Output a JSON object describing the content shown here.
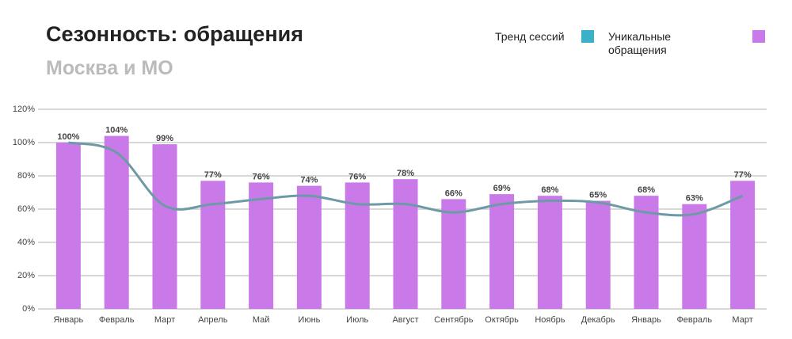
{
  "chart_data": {
    "type": "bar-line",
    "title": "Сезонность: обращения",
    "subtitle": "Москва и МО",
    "categories": [
      "Январь",
      "Февраль",
      "Март",
      "Апрель",
      "Май",
      "Июнь",
      "Июль",
      "Август",
      "Сентябрь",
      "Октябрь",
      "Ноябрь",
      "Декабрь",
      "Январь",
      "Февраль",
      "Март"
    ],
    "series": [
      {
        "name": "Тренд сессий",
        "color": "#3bb0c9",
        "line_color": "#6d9aa6",
        "kind": "line",
        "values": [
          100,
          94,
          62,
          63,
          66,
          68,
          63,
          63,
          58,
          63,
          65,
          64,
          58,
          57,
          68
        ]
      },
      {
        "name": "Уникальные обращения",
        "color": "#c97ae8",
        "kind": "bar",
        "values": [
          100,
          104,
          99,
          77,
          76,
          74,
          76,
          78,
          66,
          69,
          68,
          65,
          68,
          63,
          77
        ],
        "value_labels": [
          "100%",
          "104%",
          "99%",
          "77%",
          "76%",
          "74%",
          "76%",
          "78%",
          "66%",
          "69%",
          "68%",
          "65%",
          "68%",
          "63%",
          "77%"
        ]
      }
    ],
    "ylim": [
      0,
      120
    ],
    "yticks": [
      {
        "value": 0,
        "label": "0%"
      },
      {
        "value": 20,
        "label": "20%"
      },
      {
        "value": 40,
        "label": "40%"
      },
      {
        "value": 60,
        "label": "60%"
      },
      {
        "value": 80,
        "label": "80%"
      },
      {
        "value": 100,
        "label": "100%"
      },
      {
        "value": 120,
        "label": "120%"
      }
    ],
    "grid": true
  }
}
